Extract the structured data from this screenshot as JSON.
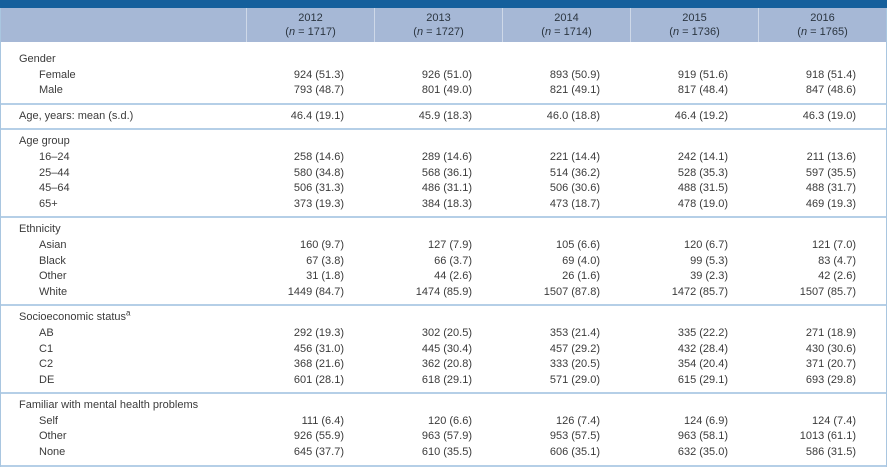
{
  "colors": {
    "top_rule": "#155f9c",
    "header_band": "#a6b8d6",
    "section_rule": "#b5cfe7",
    "side_border": "#a9c6e0",
    "text": "#3b3b3b"
  },
  "table": {
    "columns": [
      {
        "year": "2012",
        "n": "1717"
      },
      {
        "year": "2013",
        "n": "1727"
      },
      {
        "year": "2014",
        "n": "1714"
      },
      {
        "year": "2015",
        "n": "1736"
      },
      {
        "year": "2016",
        "n": "1765"
      }
    ],
    "sections": [
      {
        "heading": "Gender",
        "rows": [
          {
            "label": "Female",
            "values": [
              "924 (51.3)",
              "926 (51.0)",
              "893 (50.9)",
              "919 (51.6)",
              "918 (51.4)"
            ]
          },
          {
            "label": "Male",
            "values": [
              "793 (48.7)",
              "801 (49.0)",
              "821 (49.1)",
              "817 (48.4)",
              "847 (48.6)"
            ]
          }
        ]
      },
      {
        "rows": [
          {
            "label": "Age, years: mean (s.d.)",
            "indent": false,
            "values": [
              "46.4 (19.1)",
              "45.9 (18.3)",
              "46.0 (18.8)",
              "46.4 (19.2)",
              "46.3 (19.0)"
            ]
          }
        ]
      },
      {
        "heading": "Age group",
        "rows": [
          {
            "label": "16–24",
            "values": [
              "258 (14.6)",
              "289 (14.6)",
              "221 (14.4)",
              "242 (14.1)",
              "211 (13.6)"
            ]
          },
          {
            "label": "25–44",
            "values": [
              "580 (34.8)",
              "568 (36.1)",
              "514 (36.2)",
              "528 (35.3)",
              "597 (35.5)"
            ]
          },
          {
            "label": "45–64",
            "values": [
              "506 (31.3)",
              "486 (31.1)",
              "506 (30.6)",
              "488 (31.5)",
              "488 (31.7)"
            ]
          },
          {
            "label": "65+",
            "values": [
              "373 (19.3)",
              "384 (18.3)",
              "473 (18.7)",
              "478 (19.0)",
              "469 (19.3)"
            ]
          }
        ]
      },
      {
        "heading": "Ethnicity",
        "rows": [
          {
            "label": "Asian",
            "values": [
              "160 (9.7)",
              "127 (7.9)",
              "105 (6.6)",
              "120 (6.7)",
              "121 (7.0)"
            ]
          },
          {
            "label": "Black",
            "values": [
              "67 (3.8)",
              "66 (3.7)",
              "69 (4.0)",
              "99 (5.3)",
              "83 (4.7)"
            ]
          },
          {
            "label": "Other",
            "values": [
              "31 (1.8)",
              "44 (2.6)",
              "26 (1.6)",
              "39 (2.3)",
              "42 (2.6)"
            ]
          },
          {
            "label": "White",
            "values": [
              "1449 (84.7)",
              "1474 (85.9)",
              "1507 (87.8)",
              "1472 (85.7)",
              "1507 (85.7)"
            ]
          }
        ]
      },
      {
        "heading": "Socioeconomic status",
        "heading_sup": "a",
        "rows": [
          {
            "label": "AB",
            "values": [
              "292 (19.3)",
              "302 (20.5)",
              "353 (21.4)",
              "335 (22.2)",
              "271 (18.9)"
            ]
          },
          {
            "label": "C1",
            "values": [
              "456 (31.0)",
              "445 (30.4)",
              "457 (29.2)",
              "432 (28.4)",
              "430 (30.6)"
            ]
          },
          {
            "label": "C2",
            "values": [
              "368 (21.6)",
              "362 (20.8)",
              "333 (20.5)",
              "354 (20.4)",
              "371 (20.7)"
            ]
          },
          {
            "label": "DE",
            "values": [
              "601 (28.1)",
              "618 (29.1)",
              "571 (29.0)",
              "615 (29.1)",
              "693 (29.8)"
            ]
          }
        ]
      },
      {
        "heading": "Familiar with mental health problems",
        "rows": [
          {
            "label": "Self",
            "values": [
              "111 (6.4)",
              "120 (6.6)",
              "126 (7.4)",
              "124 (6.9)",
              "124 (7.4)"
            ]
          },
          {
            "label": "Other",
            "values": [
              "926 (55.9)",
              "963 (57.9)",
              "953 (57.5)",
              "963 (58.1)",
              "1013 (61.1)"
            ]
          },
          {
            "label": "None",
            "values": [
              "645 (37.7)",
              "610 (35.5)",
              "606 (35.1)",
              "632 (35.0)",
              "586 (31.5)"
            ]
          }
        ]
      }
    ]
  }
}
